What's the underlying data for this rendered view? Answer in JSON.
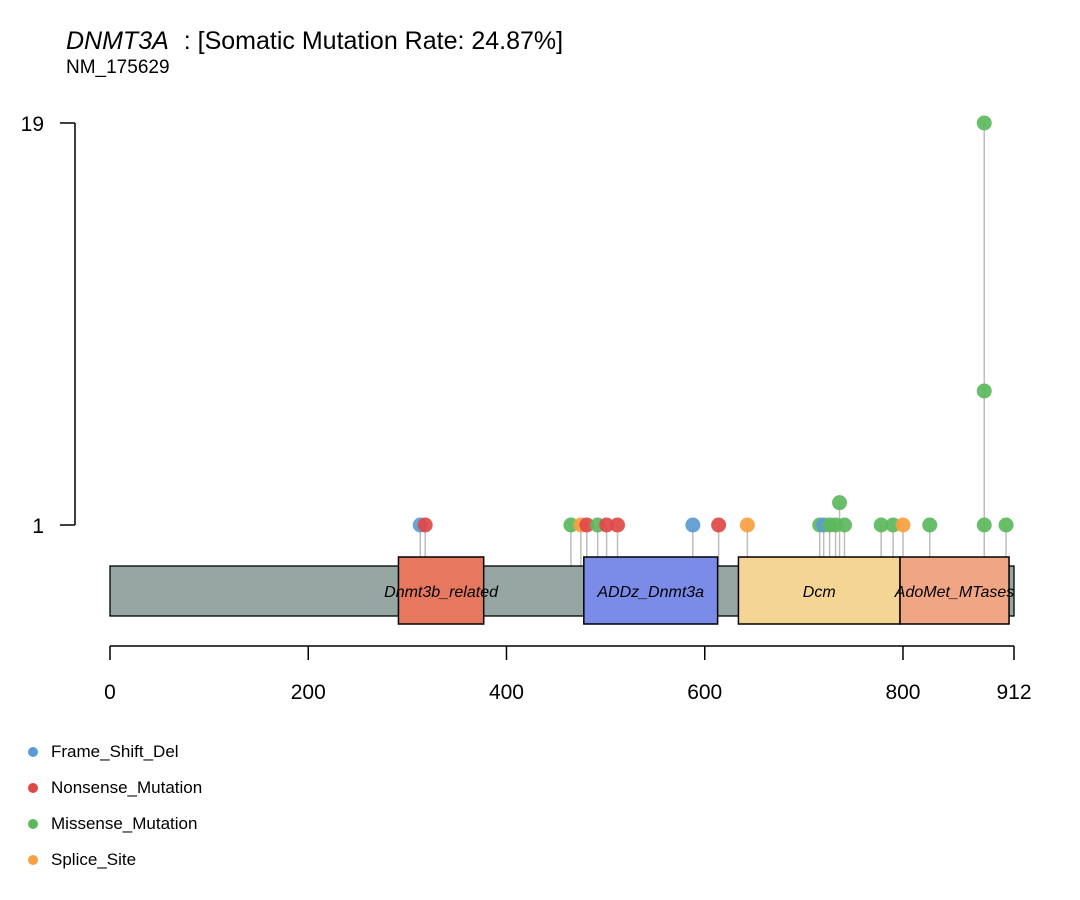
{
  "chart_data": {
    "type": "lollipop",
    "title": {
      "gene": "DNMT3A",
      "text": ": [Somatic Mutation Rate: 24.87%]",
      "transcript": "NM_175629"
    },
    "xlim": [
      0,
      912
    ],
    "x_ticks": [
      {
        "value": 0,
        "label": "0"
      },
      {
        "value": 200,
        "label": "200"
      },
      {
        "value": 400,
        "label": "400"
      },
      {
        "value": 600,
        "label": "600"
      },
      {
        "value": 800,
        "label": "800"
      },
      {
        "value": 912,
        "label": "912"
      }
    ],
    "y_ticks": [
      {
        "value": 1,
        "label": "1"
      },
      {
        "value": 19,
        "label": "19"
      }
    ],
    "protein_length": 912,
    "domains": [
      {
        "name": "Dnmt3b_related",
        "start": 291,
        "end": 377,
        "color": "#E5785F"
      },
      {
        "name": "ADDz_Dnmt3a",
        "start": 478,
        "end": 613,
        "color": "#7B8BE8"
      },
      {
        "name": "Dcm",
        "start": 634,
        "end": 797,
        "color": "#F5D593"
      },
      {
        "name": "AdoMet_MTases",
        "start": 797,
        "end": 907,
        "color": "#F0A585"
      }
    ],
    "series_colors": {
      "Frame_Shift_Del": "#5B9BD5",
      "Nonsense_Mutation": "#E04848",
      "Missense_Mutation": "#5CB85C",
      "Splice_Site": "#F9A040"
    },
    "mutations": [
      {
        "pos": 313,
        "count": 1,
        "type": "Frame_Shift_Del"
      },
      {
        "pos": 318,
        "count": 1,
        "type": "Nonsense_Mutation"
      },
      {
        "pos": 465,
        "count": 1,
        "type": "Missense_Mutation"
      },
      {
        "pos": 475,
        "count": 1,
        "type": "Splice_Site"
      },
      {
        "pos": 481,
        "count": 1,
        "type": "Nonsense_Mutation"
      },
      {
        "pos": 492,
        "count": 1,
        "type": "Missense_Mutation"
      },
      {
        "pos": 501,
        "count": 1,
        "type": "Nonsense_Mutation"
      },
      {
        "pos": 512,
        "count": 1,
        "type": "Nonsense_Mutation"
      },
      {
        "pos": 588,
        "count": 1,
        "type": "Frame_Shift_Del"
      },
      {
        "pos": 614,
        "count": 1,
        "type": "Nonsense_Mutation"
      },
      {
        "pos": 643,
        "count": 1,
        "type": "Splice_Site"
      },
      {
        "pos": 716,
        "count": 1,
        "type": "Missense_Mutation"
      },
      {
        "pos": 720,
        "count": 1,
        "type": "Frame_Shift_Del"
      },
      {
        "pos": 726,
        "count": 1,
        "type": "Missense_Mutation"
      },
      {
        "pos": 732,
        "count": 1,
        "type": "Missense_Mutation"
      },
      {
        "pos": 736,
        "count": 2,
        "type": "Missense_Mutation"
      },
      {
        "pos": 741,
        "count": 1,
        "type": "Missense_Mutation"
      },
      {
        "pos": 778,
        "count": 1,
        "type": "Missense_Mutation"
      },
      {
        "pos": 790,
        "count": 1,
        "type": "Missense_Mutation"
      },
      {
        "pos": 800,
        "count": 1,
        "type": "Splice_Site"
      },
      {
        "pos": 827,
        "count": 1,
        "type": "Missense_Mutation"
      },
      {
        "pos": 882,
        "count": 19,
        "type": "Missense_Mutation"
      },
      {
        "pos": 882,
        "count": 7,
        "type": "Missense_Mutation"
      },
      {
        "pos": 882,
        "count": 1,
        "type": "Missense_Mutation"
      },
      {
        "pos": 904,
        "count": 1,
        "type": "Missense_Mutation"
      }
    ],
    "legend": [
      {
        "label": "Frame_Shift_Del",
        "color": "#5B9BD5"
      },
      {
        "label": "Nonsense_Mutation",
        "color": "#E04848"
      },
      {
        "label": "Missense_Mutation",
        "color": "#5CB85C"
      },
      {
        "label": "Splice_Site",
        "color": "#F9A040"
      }
    ]
  }
}
